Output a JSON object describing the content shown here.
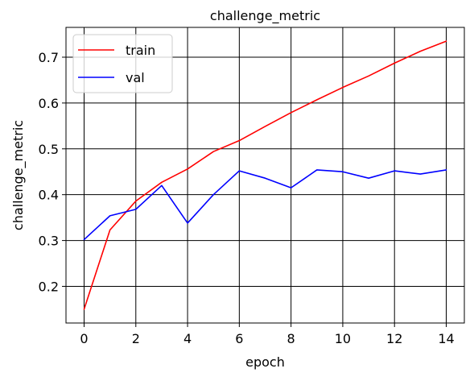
{
  "chart_data": {
    "type": "line",
    "title": "challenge_metric",
    "xlabel": "epoch",
    "ylabel": "challenge_metric",
    "xlim": [
      -0.7,
      14.7
    ],
    "ylim": [
      0.12,
      0.765
    ],
    "xticks": [
      0,
      2,
      4,
      6,
      8,
      10,
      12,
      14
    ],
    "yticks": [
      0.2,
      0.3,
      0.4,
      0.5,
      0.6,
      0.7
    ],
    "grid": true,
    "legend_position": "top-left",
    "x": [
      0,
      1,
      2,
      3,
      4,
      5,
      6,
      7,
      8,
      9,
      10,
      11,
      12,
      13,
      14
    ],
    "series": [
      {
        "name": "train",
        "color": "#ff0000",
        "values": [
          0.15,
          0.323,
          0.386,
          0.427,
          0.456,
          0.494,
          0.518,
          0.549,
          0.579,
          0.607,
          0.634,
          0.659,
          0.687,
          0.713,
          0.735
        ]
      },
      {
        "name": "val",
        "color": "#0000ff",
        "values": [
          0.302,
          0.354,
          0.368,
          0.42,
          0.338,
          0.4,
          0.452,
          0.436,
          0.415,
          0.454,
          0.45,
          0.436,
          0.452,
          0.445,
          0.454
        ]
      }
    ]
  }
}
